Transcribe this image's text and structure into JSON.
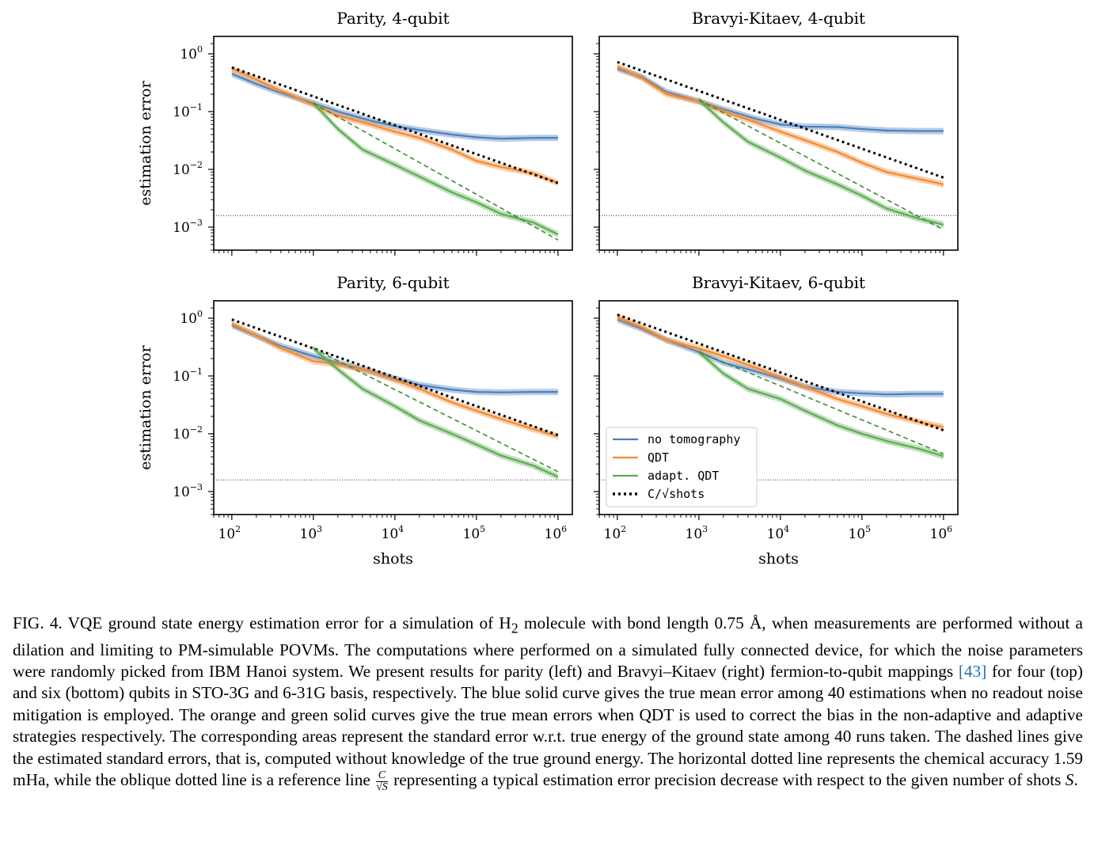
{
  "figure": {
    "shared_xlabel": "shots",
    "shared_ylabel": "estimation error",
    "x_tick_labels": [
      "10",
      "10",
      "10",
      "10",
      "10"
    ],
    "x_tick_exponents": [
      "2",
      "3",
      "4",
      "5",
      "6"
    ],
    "y_tick_labels": [
      "10",
      "10",
      "10",
      "10"
    ],
    "y_tick_exponents": [
      "0",
      "−1",
      "−2",
      "−3"
    ],
    "legend": [
      {
        "label": "no tomography",
        "color": "#4c7fbf",
        "style": "solid"
      },
      {
        "label": "QDT",
        "color": "#f28a30",
        "style": "solid"
      },
      {
        "label": "adapt. QDT",
        "color": "#5dad52",
        "style": "solid"
      },
      {
        "label": "C/√shots",
        "color": "#000000",
        "style": "dotted"
      }
    ],
    "colors": {
      "blue": "#4c7fbf",
      "orange": "#f28a30",
      "green": "#5dad52",
      "green_dashed": "#3e8a35"
    }
  },
  "chart_data": [
    {
      "type": "line",
      "title": "Parity, 4-qubit",
      "xscale": "log",
      "yscale": "log",
      "xlim": [
        60,
        1500000
      ],
      "ylim": [
        0.0004,
        2
      ],
      "xlabel": "",
      "ylabel": "estimation error",
      "hline": 0.00159,
      "series": [
        {
          "name": "no tomography",
          "x": [
            100,
            200,
            400,
            1000,
            2000,
            5000,
            10000,
            20000,
            50000,
            100000,
            200000,
            500000,
            1000000
          ],
          "y": [
            0.45,
            0.3,
            0.21,
            0.14,
            0.1,
            0.07,
            0.056,
            0.048,
            0.04,
            0.036,
            0.034,
            0.035,
            0.035
          ]
        },
        {
          "name": "QDT",
          "x": [
            100,
            200,
            400,
            1000,
            2000,
            5000,
            10000,
            20000,
            50000,
            100000,
            200000,
            500000,
            1000000
          ],
          "y": [
            0.55,
            0.36,
            0.23,
            0.13,
            0.085,
            0.06,
            0.045,
            0.035,
            0.022,
            0.014,
            0.011,
            0.0085,
            0.0058
          ]
        },
        {
          "name": "adapt. QDT",
          "x": [
            1000,
            2000,
            4000,
            10000,
            20000,
            50000,
            100000,
            200000,
            500000,
            1000000
          ],
          "y": [
            0.14,
            0.05,
            0.022,
            0.012,
            0.0075,
            0.004,
            0.0027,
            0.0017,
            0.0012,
            0.00075
          ]
        },
        {
          "name": "C/√shots",
          "x": [
            100,
            1000000
          ],
          "y": [
            0.58,
            0.0058
          ]
        },
        {
          "name": "",
          "x": [
            1000,
            1000000
          ],
          "y": [
            0.14,
            0.0006
          ]
        }
      ]
    },
    {
      "type": "line",
      "title": "Bravyi-Kitaev, 4-qubit",
      "xscale": "log",
      "yscale": "log",
      "xlim": [
        60,
        1500000
      ],
      "ylim": [
        0.0004,
        2
      ],
      "xlabel": "",
      "ylabel": "",
      "hline": 0.00159,
      "series": [
        {
          "name": "no tomography",
          "x": [
            100,
            200,
            400,
            1000,
            2000,
            5000,
            10000,
            20000,
            50000,
            100000,
            200000,
            500000,
            1000000
          ],
          "y": [
            0.55,
            0.4,
            0.22,
            0.15,
            0.11,
            0.075,
            0.06,
            0.055,
            0.054,
            0.05,
            0.047,
            0.046,
            0.046
          ]
        },
        {
          "name": "QDT",
          "x": [
            100,
            200,
            400,
            1000,
            2000,
            5000,
            10000,
            20000,
            50000,
            100000,
            200000,
            500000,
            1000000
          ],
          "y": [
            0.6,
            0.38,
            0.2,
            0.15,
            0.1,
            0.065,
            0.045,
            0.032,
            0.02,
            0.013,
            0.009,
            0.0068,
            0.0055
          ]
        },
        {
          "name": "adapt. QDT",
          "x": [
            1000,
            2000,
            4000,
            10000,
            20000,
            50000,
            100000,
            200000,
            500000,
            1000000
          ],
          "y": [
            0.16,
            0.065,
            0.03,
            0.016,
            0.0095,
            0.0055,
            0.0035,
            0.0021,
            0.0014,
            0.0011
          ]
        },
        {
          "name": "C/√shots",
          "x": [
            100,
            1000000
          ],
          "y": [
            0.72,
            0.0072
          ]
        },
        {
          "name": "",
          "x": [
            1000,
            1000000
          ],
          "y": [
            0.16,
            0.0009
          ]
        }
      ]
    },
    {
      "type": "line",
      "title": "Parity, 6-qubit",
      "xscale": "log",
      "yscale": "log",
      "xlim": [
        60,
        1500000
      ],
      "ylim": [
        0.0004,
        2
      ],
      "xlabel": "shots",
      "ylabel": "estimation error",
      "hline": 0.00159,
      "series": [
        {
          "name": "no tomography",
          "x": [
            100,
            200,
            400,
            1000,
            2000,
            5000,
            10000,
            20000,
            50000,
            100000,
            200000,
            500000,
            1000000
          ],
          "y": [
            0.75,
            0.5,
            0.33,
            0.22,
            0.17,
            0.12,
            0.09,
            0.07,
            0.058,
            0.053,
            0.052,
            0.053,
            0.053
          ]
        },
        {
          "name": "QDT",
          "x": [
            100,
            200,
            400,
            1000,
            2000,
            5000,
            10000,
            20000,
            50000,
            100000,
            200000,
            500000,
            1000000
          ],
          "y": [
            0.8,
            0.5,
            0.3,
            0.18,
            0.16,
            0.12,
            0.085,
            0.06,
            0.035,
            0.025,
            0.018,
            0.012,
            0.009
          ]
        },
        {
          "name": "adapt. QDT",
          "x": [
            1000,
            2000,
            4000,
            10000,
            20000,
            50000,
            100000,
            200000,
            500000,
            1000000
          ],
          "y": [
            0.3,
            0.13,
            0.06,
            0.03,
            0.017,
            0.01,
            0.0065,
            0.0042,
            0.0028,
            0.0018
          ]
        },
        {
          "name": "C/√shots",
          "x": [
            100,
            1000000
          ],
          "y": [
            0.95,
            0.0095
          ]
        },
        {
          "name": "",
          "x": [
            1000,
            1000000
          ],
          "y": [
            0.3,
            0.0022
          ]
        }
      ]
    },
    {
      "type": "line",
      "title": "Bravyi-Kitaev, 6-qubit",
      "xscale": "log",
      "yscale": "log",
      "xlim": [
        60,
        1500000
      ],
      "ylim": [
        0.0004,
        2
      ],
      "xlabel": "shots",
      "ylabel": "",
      "hline": 0.00159,
      "series": [
        {
          "name": "no tomography",
          "x": [
            100,
            200,
            400,
            1000,
            2000,
            5000,
            10000,
            20000,
            50000,
            100000,
            200000,
            500000,
            1000000
          ],
          "y": [
            0.95,
            0.65,
            0.42,
            0.26,
            0.17,
            0.12,
            0.09,
            0.065,
            0.053,
            0.05,
            0.048,
            0.049,
            0.049
          ]
        },
        {
          "name": "QDT",
          "x": [
            100,
            200,
            400,
            1000,
            2000,
            5000,
            10000,
            20000,
            50000,
            100000,
            200000,
            500000,
            1000000
          ],
          "y": [
            1.05,
            0.7,
            0.42,
            0.3,
            0.22,
            0.14,
            0.095,
            0.065,
            0.04,
            0.03,
            0.022,
            0.016,
            0.013
          ]
        },
        {
          "name": "adapt. QDT",
          "x": [
            1000,
            2000,
            4000,
            10000,
            20000,
            50000,
            100000,
            200000,
            500000,
            1000000
          ],
          "y": [
            0.26,
            0.11,
            0.06,
            0.04,
            0.025,
            0.014,
            0.01,
            0.0075,
            0.0055,
            0.0041
          ]
        },
        {
          "name": "C/√shots",
          "x": [
            100,
            1000000
          ],
          "y": [
            1.15,
            0.0115
          ]
        },
        {
          "name": "",
          "x": [
            1000,
            1000000
          ],
          "y": [
            0.26,
            0.0045
          ]
        }
      ]
    }
  ],
  "caption": {
    "label": "FIG. 4.",
    "part1": "VQE ground state energy estimation error for a simulation of H",
    "h2_sub": "2",
    "part2": " molecule with bond length 0.75 Å, when measurements are performed without a dilation and limiting to PM-simulable POVMs. The computations where performed on a simulated fully connected device, for which the noise parameters were randomly picked from IBM Hanoi system. We present results for parity (left) and Bravyi–Kitaev (right) fermion-to-qubit mappings ",
    "ref": "[43]",
    "part3": " for four (top) and six (bottom) qubits in STO-3G and 6-31G basis, respectively. The blue solid curve gives the true mean error among 40 estimations when no readout noise mitigation is employed. The orange and green solid curves give the true mean errors when QDT is used to correct the bias in the non-adaptive and adaptive strategies respectively. The corresponding areas represent the standard error w.r.t. true energy of the ground state among 40 runs taken. The dashed lines give the estimated standard errors, that is, computed without knowledge of the true ground energy. The horizontal dotted line represents the chemical accuracy 1.59 mHa, while the oblique dotted line is a reference line ",
    "frac_num": "C",
    "frac_den": "√S",
    "part4": " representing a typical estimation error precision decrease with respect to the given number of shots ",
    "shots_symbol": "S",
    "part5": "."
  }
}
